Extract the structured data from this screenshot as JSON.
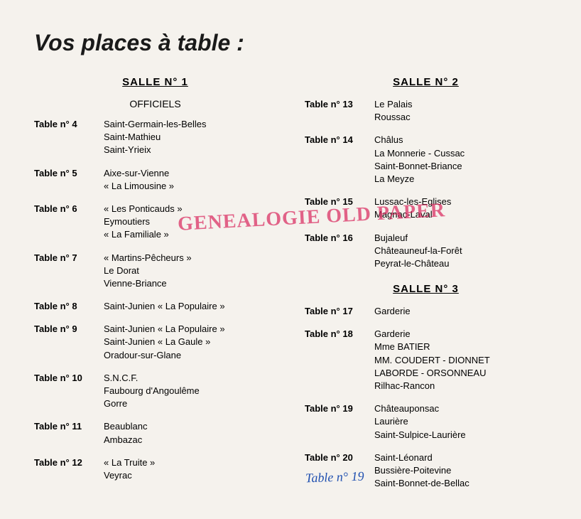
{
  "title": "Vos places à table :",
  "watermark": "GENEALOGIE OLD PAPER",
  "handwritten": "Table n° 19",
  "colors": {
    "background": "#f5f2ed",
    "text": "#1a1a1a",
    "watermark": "#d9265c",
    "handwritten": "#2050b0"
  },
  "salles": {
    "salle1": {
      "header": "SALLE N° 1",
      "officiels": "OFFICIELS",
      "tables": [
        {
          "num": "Table n° 4",
          "lines": [
            "Saint-Germain-les-Belles",
            "Saint-Mathieu",
            "Saint-Yrieix"
          ]
        },
        {
          "num": "Table n° 5",
          "lines": [
            "Aixe-sur-Vienne",
            "« La Limousine »"
          ]
        },
        {
          "num": "Table n° 6",
          "lines": [
            "« Les Ponticauds »",
            "Eymoutiers",
            "« La Familiale »"
          ]
        },
        {
          "num": "Table n° 7",
          "lines": [
            "« Martins-Pêcheurs »",
            "Le Dorat",
            "Vienne-Briance"
          ]
        },
        {
          "num": "Table n° 8",
          "lines": [
            "Saint-Junien « La Populaire »"
          ]
        },
        {
          "num": "Table n° 9",
          "lines": [
            "Saint-Junien « La Populaire »",
            "Saint-Junien « La Gaule »",
            "Oradour-sur-Glane"
          ]
        },
        {
          "num": "Table n° 10",
          "lines": [
            "S.N.C.F.",
            "Faubourg d'Angoulême",
            "Gorre"
          ]
        },
        {
          "num": "Table n° 11",
          "lines": [
            "Beaublanc",
            "Ambazac"
          ]
        },
        {
          "num": "Table n° 12",
          "lines": [
            "« La Truite »",
            "Veyrac"
          ]
        }
      ]
    },
    "salle2": {
      "header": "SALLE N° 2",
      "tables": [
        {
          "num": "Table n° 13",
          "lines": [
            "Le Palais",
            "Roussac"
          ]
        },
        {
          "num": "Table n° 14",
          "lines": [
            "Châlus",
            "La Monnerie - Cussac",
            "Saint-Bonnet-Briance",
            "La Meyze"
          ]
        },
        {
          "num": "Table n° 15",
          "lines": [
            "Lussac-les-Eglises",
            "Magnac-Laval"
          ]
        },
        {
          "num": "Table n° 16",
          "lines": [
            "Bujaleuf",
            "Châteauneuf-la-Forêt",
            "Peyrat-le-Château"
          ]
        }
      ]
    },
    "salle3": {
      "header": "SALLE N° 3",
      "tables": [
        {
          "num": "Table n° 17",
          "lines": [
            "Garderie"
          ]
        },
        {
          "num": "Table n° 18",
          "lines": [
            "Garderie",
            "Mme BATIER",
            "MM. COUDERT - DIONNET",
            "LABORDE - ORSONNEAU",
            "Rilhac-Rancon"
          ]
        },
        {
          "num": "Table n° 19",
          "lines": [
            "Châteauponsac",
            "Laurière",
            "Saint-Sulpice-Laurière"
          ]
        },
        {
          "num": "Table n° 20",
          "lines": [
            "Saint-Léonard",
            "Bussière-Poitevine",
            "Saint-Bonnet-de-Bellac"
          ]
        }
      ]
    }
  }
}
